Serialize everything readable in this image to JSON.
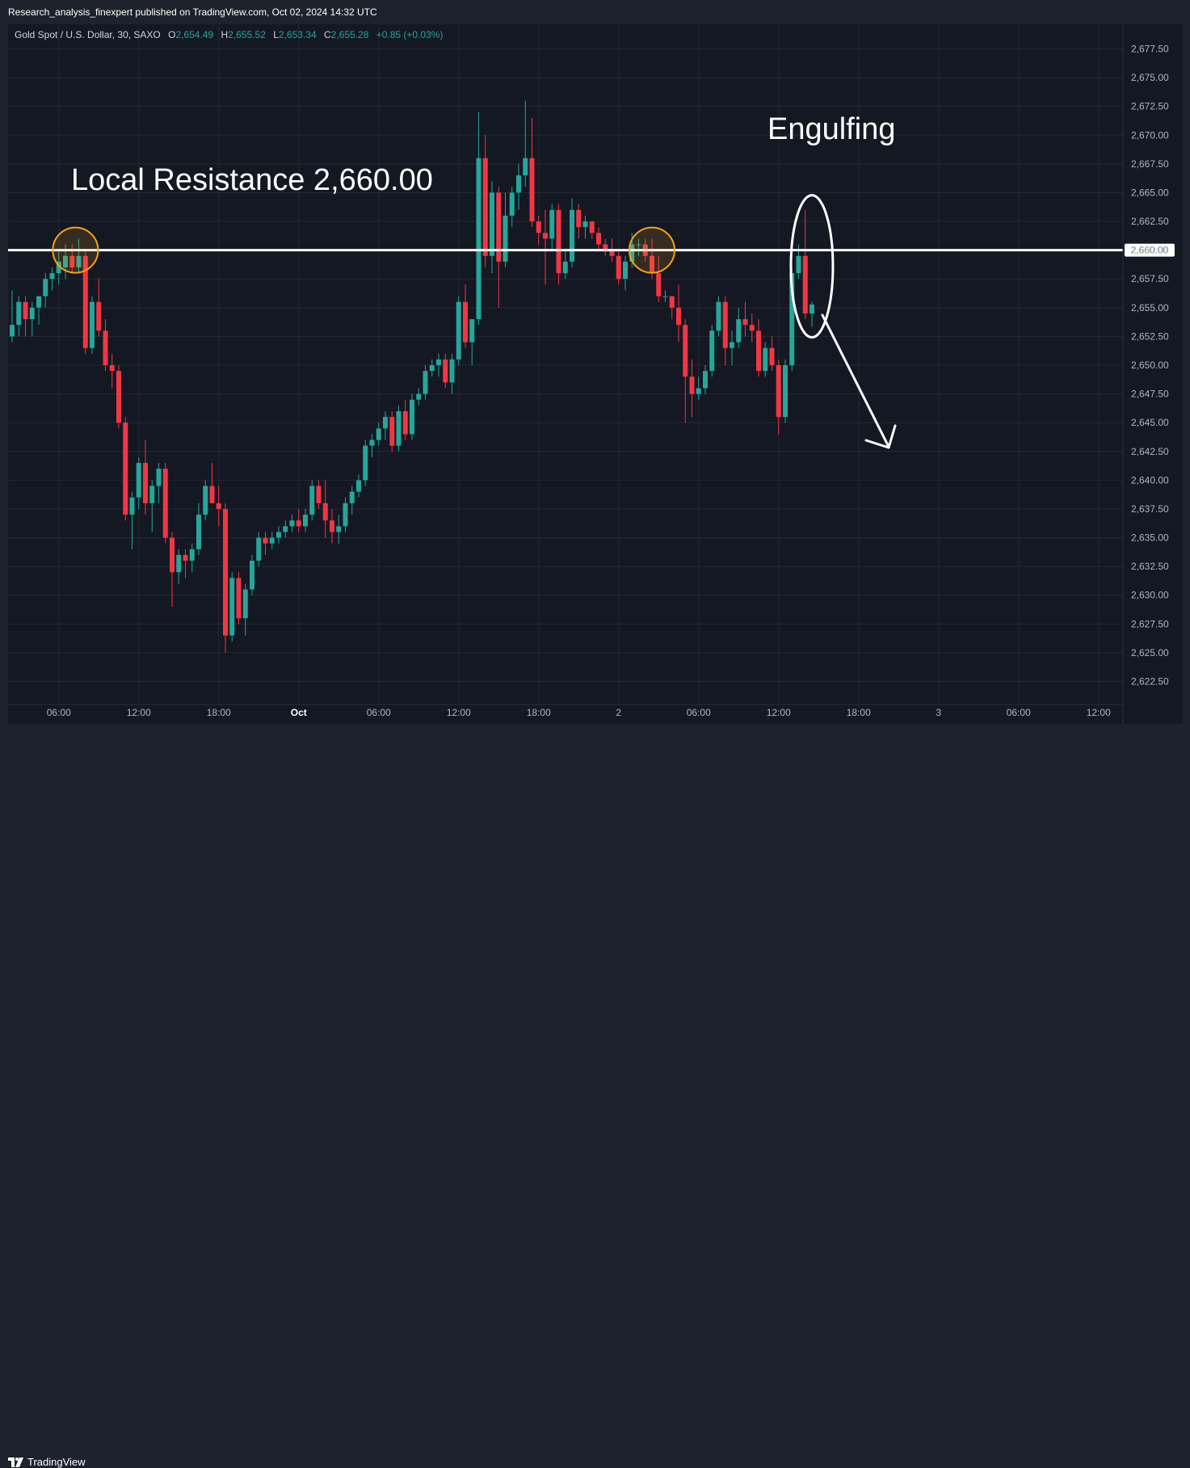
{
  "header": {
    "publisher_line": "Research_analysis_finexpert published on TradingView.com, Oct 02, 2024 14:32 UTC"
  },
  "legend": {
    "symbol": "Gold Spot / U.S. Dollar, 30, SAXO",
    "o_label": "O",
    "o_value": "2,654.49",
    "h_label": "H",
    "h_value": "2,655.52",
    "l_label": "L",
    "l_value": "2,653.34",
    "c_label": "C",
    "c_value": "2,655.28",
    "change": "+0.85 (+0.03%)"
  },
  "annotations": {
    "resistance_text": "Local Resistance 2,660.00",
    "engulfing_text": "Engulfing",
    "price_tag": "2,660.00"
  },
  "footer": {
    "brand": "TradingView",
    "logo_icon": "tradingview-logo-icon"
  },
  "colors": {
    "up": "#26a69a",
    "down": "#f23645",
    "background": "#141823",
    "grid": "#242833",
    "circle": "#f7a21b",
    "annotation": "#ffffff"
  },
  "chart_data": {
    "type": "candlestick",
    "y_axis": {
      "ticks": [
        "2,677.50",
        "2,675.00",
        "2,672.50",
        "2,670.00",
        "2,667.50",
        "2,665.00",
        "2,662.50",
        "2,660.00",
        "2,657.50",
        "2,655.00",
        "2,652.50",
        "2,650.00",
        "2,647.50",
        "2,645.00",
        "2,642.50",
        "2,640.00",
        "2,637.50",
        "2,635.00",
        "2,632.50",
        "2,630.00",
        "2,627.50",
        "2,625.00",
        "2,622.50"
      ],
      "tick_values": [
        2677.5,
        2675,
        2672.5,
        2670,
        2667.5,
        2665,
        2662.5,
        2660,
        2657.5,
        2655,
        2652.5,
        2650,
        2647.5,
        2645,
        2642.5,
        2640,
        2637.5,
        2635,
        2632.5,
        2630,
        2627.5,
        2625,
        2622.5
      ],
      "range": [
        2620.5,
        2679.5
      ]
    },
    "x_axis": {
      "labels": [
        "06:00",
        "12:00",
        "18:00",
        "Oct",
        "06:00",
        "12:00",
        "18:00",
        "2",
        "06:00",
        "12:00",
        "18:00",
        "3",
        "06:00",
        "12:00"
      ],
      "bold": [
        false,
        false,
        false,
        true,
        false,
        false,
        false,
        false,
        false,
        false,
        false,
        false,
        false,
        false
      ],
      "bar_index": [
        7,
        19,
        31,
        43,
        55,
        67,
        79,
        91,
        103,
        115,
        127,
        139,
        151,
        163
      ]
    },
    "resistance_level": 2660.0,
    "candles": [
      {
        "o": 2652.5,
        "h": 2656.5,
        "l": 2652.0,
        "c": 2653.5
      },
      {
        "o": 2653.5,
        "h": 2656.0,
        "l": 2652.5,
        "c": 2655.5
      },
      {
        "o": 2655.5,
        "h": 2656.0,
        "l": 2652.5,
        "c": 2654.0
      },
      {
        "o": 2654.0,
        "h": 2655.5,
        "l": 2652.5,
        "c": 2655.0
      },
      {
        "o": 2655.0,
        "h": 2656.0,
        "l": 2653.5,
        "c": 2656.0
      },
      {
        "o": 2656.0,
        "h": 2658.0,
        "l": 2655.0,
        "c": 2657.5
      },
      {
        "o": 2657.5,
        "h": 2658.5,
        "l": 2656.5,
        "c": 2658.0
      },
      {
        "o": 2658.0,
        "h": 2660.0,
        "l": 2657.0,
        "c": 2659.0
      },
      {
        "o": 2658.5,
        "h": 2660.5,
        "l": 2657.5,
        "c": 2659.5
      },
      {
        "o": 2659.5,
        "h": 2660.5,
        "l": 2658.0,
        "c": 2658.5
      },
      {
        "o": 2658.5,
        "h": 2661.0,
        "l": 2658.0,
        "c": 2659.5
      },
      {
        "o": 2659.5,
        "h": 2660.0,
        "l": 2651.0,
        "c": 2651.5
      },
      {
        "o": 2651.5,
        "h": 2656.0,
        "l": 2651.0,
        "c": 2655.5
      },
      {
        "o": 2655.5,
        "h": 2657.5,
        "l": 2652.5,
        "c": 2653.0
      },
      {
        "o": 2653.0,
        "h": 2654.0,
        "l": 2649.5,
        "c": 2650.0
      },
      {
        "o": 2650.0,
        "h": 2651.0,
        "l": 2648.0,
        "c": 2649.5
      },
      {
        "o": 2649.5,
        "h": 2650.0,
        "l": 2644.5,
        "c": 2645.0
      },
      {
        "o": 2645.0,
        "h": 2645.5,
        "l": 2636.5,
        "c": 2637.0
      },
      {
        "o": 2637.0,
        "h": 2639.0,
        "l": 2634.0,
        "c": 2638.5
      },
      {
        "o": 2638.5,
        "h": 2642.0,
        "l": 2637.5,
        "c": 2641.5
      },
      {
        "o": 2641.5,
        "h": 2643.5,
        "l": 2637.0,
        "c": 2638.0
      },
      {
        "o": 2638.0,
        "h": 2640.0,
        "l": 2635.5,
        "c": 2639.5
      },
      {
        "o": 2639.5,
        "h": 2641.5,
        "l": 2638.0,
        "c": 2641.0
      },
      {
        "o": 2641.0,
        "h": 2641.5,
        "l": 2634.5,
        "c": 2635.0
      },
      {
        "o": 2635.0,
        "h": 2635.5,
        "l": 2629.0,
        "c": 2632.0
      },
      {
        "o": 2632.0,
        "h": 2634.0,
        "l": 2631.0,
        "c": 2633.5
      },
      {
        "o": 2633.5,
        "h": 2634.0,
        "l": 2631.5,
        "c": 2633.0
      },
      {
        "o": 2633.0,
        "h": 2634.5,
        "l": 2632.0,
        "c": 2634.0
      },
      {
        "o": 2634.0,
        "h": 2638.0,
        "l": 2633.5,
        "c": 2637.0
      },
      {
        "o": 2637.0,
        "h": 2640.0,
        "l": 2636.5,
        "c": 2639.5
      },
      {
        "o": 2639.5,
        "h": 2641.5,
        "l": 2638.5,
        "c": 2638.0
      },
      {
        "o": 2638.0,
        "h": 2639.5,
        "l": 2636.0,
        "c": 2637.5
      },
      {
        "o": 2637.5,
        "h": 2638.0,
        "l": 2625.0,
        "c": 2626.5
      },
      {
        "o": 2626.5,
        "h": 2632.0,
        "l": 2626.0,
        "c": 2631.5
      },
      {
        "o": 2631.5,
        "h": 2632.0,
        "l": 2627.5,
        "c": 2628.0
      },
      {
        "o": 2628.0,
        "h": 2631.0,
        "l": 2626.5,
        "c": 2630.5
      },
      {
        "o": 2630.5,
        "h": 2633.5,
        "l": 2630.0,
        "c": 2633.0
      },
      {
        "o": 2633.0,
        "h": 2635.5,
        "l": 2632.5,
        "c": 2635.0
      },
      {
        "o": 2635.0,
        "h": 2635.5,
        "l": 2633.5,
        "c": 2634.5
      },
      {
        "o": 2634.5,
        "h": 2635.5,
        "l": 2634.0,
        "c": 2635.0
      },
      {
        "o": 2635.0,
        "h": 2636.0,
        "l": 2634.5,
        "c": 2635.5
      },
      {
        "o": 2635.5,
        "h": 2636.5,
        "l": 2635.0,
        "c": 2636.0
      },
      {
        "o": 2636.0,
        "h": 2637.0,
        "l": 2635.5,
        "c": 2636.5
      },
      {
        "o": 2636.5,
        "h": 2637.5,
        "l": 2635.5,
        "c": 2636.0
      },
      {
        "o": 2636.0,
        "h": 2637.5,
        "l": 2635.5,
        "c": 2637.0
      },
      {
        "o": 2637.0,
        "h": 2640.0,
        "l": 2636.5,
        "c": 2639.5
      },
      {
        "o": 2639.5,
        "h": 2640.0,
        "l": 2637.5,
        "c": 2638.0
      },
      {
        "o": 2638.0,
        "h": 2640.0,
        "l": 2635.0,
        "c": 2636.5
      },
      {
        "o": 2636.5,
        "h": 2637.5,
        "l": 2634.5,
        "c": 2635.5
      },
      {
        "o": 2635.5,
        "h": 2637.0,
        "l": 2634.5,
        "c": 2636.0
      },
      {
        "o": 2636.0,
        "h": 2638.5,
        "l": 2635.5,
        "c": 2638.0
      },
      {
        "o": 2638.0,
        "h": 2639.5,
        "l": 2637.0,
        "c": 2639.0
      },
      {
        "o": 2639.0,
        "h": 2640.5,
        "l": 2638.5,
        "c": 2640.0
      },
      {
        "o": 2640.0,
        "h": 2643.5,
        "l": 2639.5,
        "c": 2643.0
      },
      {
        "o": 2643.0,
        "h": 2644.0,
        "l": 2642.0,
        "c": 2643.5
      },
      {
        "o": 2643.5,
        "h": 2645.0,
        "l": 2643.0,
        "c": 2644.5
      },
      {
        "o": 2644.5,
        "h": 2646.0,
        "l": 2643.5,
        "c": 2645.5
      },
      {
        "o": 2645.5,
        "h": 2646.0,
        "l": 2642.5,
        "c": 2643.0
      },
      {
        "o": 2643.0,
        "h": 2646.5,
        "l": 2642.5,
        "c": 2646.0
      },
      {
        "o": 2646.0,
        "h": 2647.0,
        "l": 2643.5,
        "c": 2644.0
      },
      {
        "o": 2644.0,
        "h": 2647.5,
        "l": 2643.5,
        "c": 2647.0
      },
      {
        "o": 2647.0,
        "h": 2648.0,
        "l": 2646.5,
        "c": 2647.5
      },
      {
        "o": 2647.5,
        "h": 2650.0,
        "l": 2647.0,
        "c": 2649.5
      },
      {
        "o": 2649.5,
        "h": 2650.5,
        "l": 2649.0,
        "c": 2650.0
      },
      {
        "o": 2650.0,
        "h": 2651.0,
        "l": 2649.0,
        "c": 2650.5
      },
      {
        "o": 2650.5,
        "h": 2651.0,
        "l": 2648.0,
        "c": 2648.5
      },
      {
        "o": 2648.5,
        "h": 2651.0,
        "l": 2647.5,
        "c": 2650.5
      },
      {
        "o": 2650.5,
        "h": 2656.0,
        "l": 2650.0,
        "c": 2655.5
      },
      {
        "o": 2655.5,
        "h": 2657.0,
        "l": 2651.5,
        "c": 2652.0
      },
      {
        "o": 2652.0,
        "h": 2654.0,
        "l": 2650.0,
        "c": 2654.0
      },
      {
        "o": 2654.0,
        "h": 2672.0,
        "l": 2653.5,
        "c": 2668.0
      },
      {
        "o": 2668.0,
        "h": 2670.0,
        "l": 2658.5,
        "c": 2659.5
      },
      {
        "o": 2659.5,
        "h": 2666.0,
        "l": 2658.0,
        "c": 2665.0
      },
      {
        "o": 2665.0,
        "h": 2665.5,
        "l": 2655.0,
        "c": 2659.0
      },
      {
        "o": 2659.0,
        "h": 2665.0,
        "l": 2658.5,
        "c": 2663.0
      },
      {
        "o": 2663.0,
        "h": 2665.5,
        "l": 2662.0,
        "c": 2665.0
      },
      {
        "o": 2665.0,
        "h": 2667.5,
        "l": 2663.5,
        "c": 2666.5
      },
      {
        "o": 2666.5,
        "h": 2673.0,
        "l": 2665.5,
        "c": 2668.0
      },
      {
        "o": 2668.0,
        "h": 2671.5,
        "l": 2662.0,
        "c": 2662.5
      },
      {
        "o": 2662.5,
        "h": 2663.0,
        "l": 2660.5,
        "c": 2661.5
      },
      {
        "o": 2661.5,
        "h": 2663.5,
        "l": 2657.0,
        "c": 2661.0
      },
      {
        "o": 2661.0,
        "h": 2664.0,
        "l": 2660.0,
        "c": 2663.5
      },
      {
        "o": 2663.5,
        "h": 2664.0,
        "l": 2657.0,
        "c": 2658.0
      },
      {
        "o": 2658.0,
        "h": 2660.0,
        "l": 2657.5,
        "c": 2659.0
      },
      {
        "o": 2659.0,
        "h": 2664.5,
        "l": 2658.5,
        "c": 2663.5
      },
      {
        "o": 2663.5,
        "h": 2664.0,
        "l": 2661.0,
        "c": 2662.0
      },
      {
        "o": 2662.0,
        "h": 2663.0,
        "l": 2661.0,
        "c": 2662.5
      },
      {
        "o": 2662.5,
        "h": 2662.5,
        "l": 2661.0,
        "c": 2661.5
      },
      {
        "o": 2661.5,
        "h": 2662.0,
        "l": 2660.0,
        "c": 2660.5
      },
      {
        "o": 2660.5,
        "h": 2661.0,
        "l": 2659.5,
        "c": 2660.0
      },
      {
        "o": 2660.0,
        "h": 2661.0,
        "l": 2659.0,
        "c": 2659.5
      },
      {
        "o": 2659.5,
        "h": 2660.0,
        "l": 2657.0,
        "c": 2657.5
      },
      {
        "o": 2657.5,
        "h": 2659.5,
        "l": 2656.5,
        "c": 2659.0
      },
      {
        "o": 2659.0,
        "h": 2661.5,
        "l": 2658.5,
        "c": 2660.5
      },
      {
        "o": 2660.5,
        "h": 2661.0,
        "l": 2659.5,
        "c": 2660.5
      },
      {
        "o": 2660.5,
        "h": 2661.0,
        "l": 2659.0,
        "c": 2659.5
      },
      {
        "o": 2659.5,
        "h": 2661.0,
        "l": 2657.5,
        "c": 2658.0
      },
      {
        "o": 2658.0,
        "h": 2659.5,
        "l": 2655.5,
        "c": 2656.0
      },
      {
        "o": 2656.0,
        "h": 2656.5,
        "l": 2655.5,
        "c": 2656.0
      },
      {
        "o": 2656.0,
        "h": 2656.0,
        "l": 2654.0,
        "c": 2655.0
      },
      {
        "o": 2655.0,
        "h": 2657.0,
        "l": 2652.0,
        "c": 2653.5
      },
      {
        "o": 2653.5,
        "h": 2654.0,
        "l": 2645.0,
        "c": 2649.0
      },
      {
        "o": 2649.0,
        "h": 2650.5,
        "l": 2645.5,
        "c": 2647.5
      },
      {
        "o": 2647.5,
        "h": 2649.0,
        "l": 2647.0,
        "c": 2648.0
      },
      {
        "o": 2648.0,
        "h": 2650.0,
        "l": 2647.5,
        "c": 2649.5
      },
      {
        "o": 2649.5,
        "h": 2653.5,
        "l": 2649.0,
        "c": 2653.0
      },
      {
        "o": 2653.0,
        "h": 2656.0,
        "l": 2652.5,
        "c": 2655.5
      },
      {
        "o": 2655.5,
        "h": 2656.0,
        "l": 2650.0,
        "c": 2651.5
      },
      {
        "o": 2651.5,
        "h": 2653.0,
        "l": 2650.0,
        "c": 2652.0
      },
      {
        "o": 2652.0,
        "h": 2655.0,
        "l": 2651.5,
        "c": 2654.0
      },
      {
        "o": 2654.0,
        "h": 2655.5,
        "l": 2652.5,
        "c": 2653.5
      },
      {
        "o": 2653.5,
        "h": 2654.5,
        "l": 2652.0,
        "c": 2653.0
      },
      {
        "o": 2653.0,
        "h": 2654.0,
        "l": 2649.0,
        "c": 2649.5
      },
      {
        "o": 2649.5,
        "h": 2652.0,
        "l": 2649.0,
        "c": 2651.5
      },
      {
        "o": 2651.5,
        "h": 2652.5,
        "l": 2649.5,
        "c": 2650.0
      },
      {
        "o": 2650.0,
        "h": 2650.5,
        "l": 2644.0,
        "c": 2645.5
      },
      {
        "o": 2645.5,
        "h": 2650.5,
        "l": 2645.0,
        "c": 2650.0
      },
      {
        "o": 2650.0,
        "h": 2658.5,
        "l": 2649.5,
        "c": 2658.0
      },
      {
        "o": 2658.0,
        "h": 2660.5,
        "l": 2657.5,
        "c": 2659.5
      },
      {
        "o": 2659.5,
        "h": 2663.5,
        "l": 2654.0,
        "c": 2654.5
      },
      {
        "o": 2654.49,
        "h": 2655.52,
        "l": 2653.34,
        "c": 2655.28
      }
    ]
  }
}
